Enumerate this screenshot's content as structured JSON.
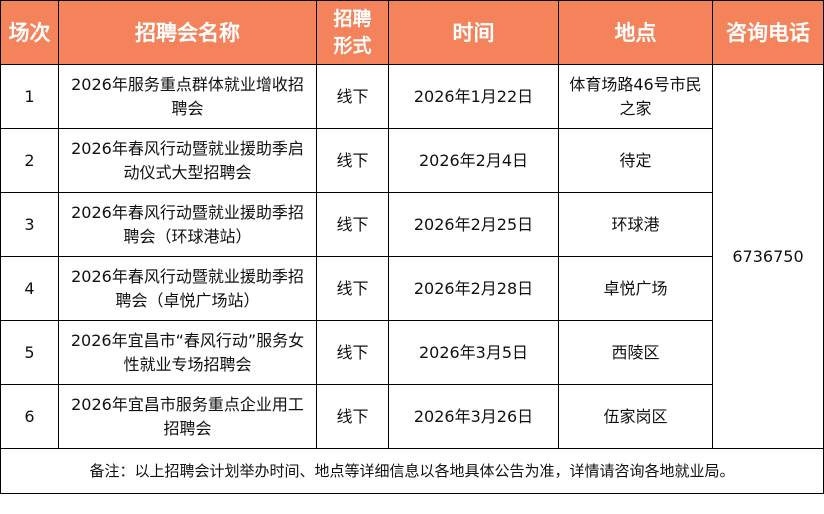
{
  "header": {
    "colors": {
      "header_bg": "#F4825A",
      "header_text": "#ffffff"
    },
    "columns": [
      "场次",
      "招聘会名称",
      "招聘形式",
      "时间",
      "地点",
      "咨询电话"
    ]
  },
  "rows": [
    {
      "no": "1",
      "name": "2026年服务重点群体就业增收招聘会",
      "form": "线下",
      "date": "2026年1月22日",
      "place": "体育场路46号市民之家"
    },
    {
      "no": "2",
      "name": "2026年春风行动暨就业援助季启动仪式大型招聘会",
      "form": "线下",
      "date": "2026年2月4日",
      "place": "待定"
    },
    {
      "no": "3",
      "name": "2026年春风行动暨就业援助季招聘会（环球港站）",
      "form": "线下",
      "date": "2026年2月25日",
      "place": "环球港"
    },
    {
      "no": "4",
      "name": "2026年春风行动暨就业援助季招聘会（卓悦广场站）",
      "form": "线下",
      "date": "2026年2月28日",
      "place": "卓悦广场"
    },
    {
      "no": "5",
      "name": "2026年宜昌市“春风行动”服务女性就业专场招聘会",
      "form": "线下",
      "date": "2026年3月5日",
      "place": "西陵区"
    },
    {
      "no": "6",
      "name": "2026年宜昌市服务重点企业用工招聘会",
      "form": "线下",
      "date": "2026年3月26日",
      "place": "伍家岗区"
    }
  ],
  "phone": "6736750",
  "note": "备注：以上招聘会计划举办时间、地点等详细信息以各地具体公告为准，详情请咨询各地就业局。"
}
